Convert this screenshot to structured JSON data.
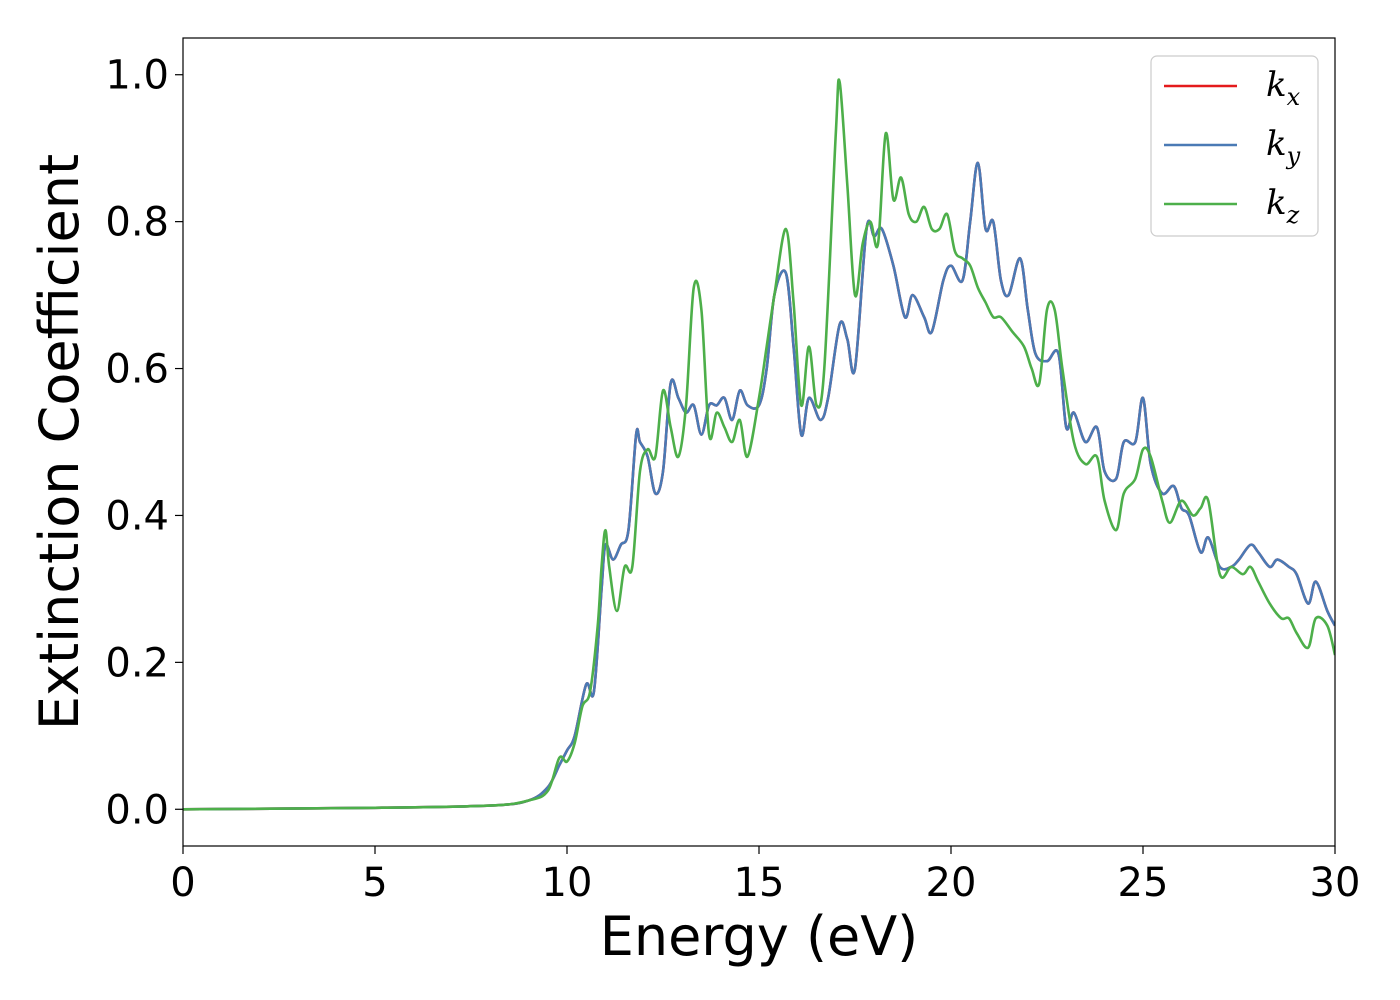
{
  "chart_data": {
    "type": "line",
    "title": "",
    "xlabel": "Energy (eV)",
    "ylabel": "Extinction Coefficient",
    "xlim": [
      0,
      30
    ],
    "ylim": [
      -0.05,
      1.05
    ],
    "xticks": [
      0,
      5,
      10,
      15,
      20,
      25,
      30
    ],
    "yticks": [
      0.0,
      0.2,
      0.4,
      0.6,
      0.8,
      1.0
    ],
    "xtick_labels": [
      "0",
      "5",
      "10",
      "15",
      "20",
      "25",
      "30"
    ],
    "ytick_labels": [
      "0.0",
      "0.2",
      "0.4",
      "0.6",
      "0.8",
      "1.0"
    ],
    "grid": false,
    "legend_position": "top-right",
    "series": [
      {
        "name": "k",
        "subscript": "x",
        "color": "#e41a1c",
        "x": [
          0,
          5,
          8,
          9,
          9.5,
          9.8,
          10.0,
          10.2,
          10.5,
          10.7,
          10.9,
          11.0,
          11.2,
          11.4,
          11.6,
          11.8,
          11.9,
          12.1,
          12.3,
          12.5,
          12.7,
          12.9,
          13.1,
          13.3,
          13.5,
          13.7,
          13.9,
          14.1,
          14.3,
          14.5,
          14.7,
          15.0,
          15.2,
          15.4,
          15.7,
          15.9,
          16.1,
          16.3,
          16.6,
          16.8,
          17.1,
          17.3,
          17.5,
          17.8,
          18.0,
          18.2,
          18.5,
          18.8,
          19.0,
          19.3,
          19.5,
          19.8,
          20.0,
          20.3,
          20.5,
          20.7,
          20.9,
          21.1,
          21.3,
          21.5,
          21.8,
          22.0,
          22.2,
          22.5,
          22.8,
          23.0,
          23.2,
          23.5,
          23.8,
          24.0,
          24.3,
          24.5,
          24.8,
          25.0,
          25.2,
          25.5,
          25.8,
          26.0,
          26.2,
          26.5,
          26.7,
          27.0,
          27.3,
          27.5,
          27.8,
          28.0,
          28.3,
          28.5,
          28.8,
          29.0,
          29.3,
          29.5,
          29.8,
          30.0
        ],
        "y": [
          0.0,
          0.002,
          0.005,
          0.012,
          0.03,
          0.06,
          0.08,
          0.1,
          0.17,
          0.16,
          0.3,
          0.36,
          0.34,
          0.36,
          0.38,
          0.51,
          0.5,
          0.48,
          0.43,
          0.46,
          0.58,
          0.56,
          0.54,
          0.55,
          0.51,
          0.55,
          0.55,
          0.56,
          0.53,
          0.57,
          0.55,
          0.55,
          0.6,
          0.7,
          0.73,
          0.63,
          0.51,
          0.56,
          0.53,
          0.56,
          0.66,
          0.64,
          0.6,
          0.79,
          0.78,
          0.79,
          0.74,
          0.67,
          0.7,
          0.67,
          0.65,
          0.72,
          0.74,
          0.72,
          0.8,
          0.88,
          0.79,
          0.8,
          0.72,
          0.7,
          0.75,
          0.68,
          0.62,
          0.61,
          0.62,
          0.52,
          0.54,
          0.5,
          0.52,
          0.46,
          0.45,
          0.5,
          0.5,
          0.56,
          0.47,
          0.43,
          0.44,
          0.41,
          0.4,
          0.35,
          0.37,
          0.33,
          0.33,
          0.34,
          0.36,
          0.35,
          0.33,
          0.34,
          0.33,
          0.32,
          0.28,
          0.31,
          0.27,
          0.25
        ]
      },
      {
        "name": "k",
        "subscript": "y",
        "color": "#4a7ab5",
        "x": [
          0,
          5,
          8,
          9,
          9.5,
          9.8,
          10.0,
          10.2,
          10.5,
          10.7,
          10.9,
          11.0,
          11.2,
          11.4,
          11.6,
          11.8,
          11.9,
          12.1,
          12.3,
          12.5,
          12.7,
          12.9,
          13.1,
          13.3,
          13.5,
          13.7,
          13.9,
          14.1,
          14.3,
          14.5,
          14.7,
          15.0,
          15.2,
          15.4,
          15.7,
          15.9,
          16.1,
          16.3,
          16.6,
          16.8,
          17.1,
          17.3,
          17.5,
          17.8,
          18.0,
          18.2,
          18.5,
          18.8,
          19.0,
          19.3,
          19.5,
          19.8,
          20.0,
          20.3,
          20.5,
          20.7,
          20.9,
          21.1,
          21.3,
          21.5,
          21.8,
          22.0,
          22.2,
          22.5,
          22.8,
          23.0,
          23.2,
          23.5,
          23.8,
          24.0,
          24.3,
          24.5,
          24.8,
          25.0,
          25.2,
          25.5,
          25.8,
          26.0,
          26.2,
          26.5,
          26.7,
          27.0,
          27.3,
          27.5,
          27.8,
          28.0,
          28.3,
          28.5,
          28.8,
          29.0,
          29.3,
          29.5,
          29.8,
          30.0
        ],
        "y": [
          0.0,
          0.002,
          0.005,
          0.012,
          0.03,
          0.06,
          0.08,
          0.1,
          0.17,
          0.16,
          0.3,
          0.36,
          0.34,
          0.36,
          0.38,
          0.51,
          0.5,
          0.48,
          0.43,
          0.46,
          0.58,
          0.56,
          0.54,
          0.55,
          0.51,
          0.55,
          0.55,
          0.56,
          0.53,
          0.57,
          0.55,
          0.55,
          0.6,
          0.7,
          0.73,
          0.63,
          0.51,
          0.56,
          0.53,
          0.56,
          0.66,
          0.64,
          0.6,
          0.79,
          0.78,
          0.79,
          0.74,
          0.67,
          0.7,
          0.67,
          0.65,
          0.72,
          0.74,
          0.72,
          0.8,
          0.88,
          0.79,
          0.8,
          0.72,
          0.7,
          0.75,
          0.68,
          0.62,
          0.61,
          0.62,
          0.52,
          0.54,
          0.5,
          0.52,
          0.46,
          0.45,
          0.5,
          0.5,
          0.56,
          0.47,
          0.43,
          0.44,
          0.41,
          0.4,
          0.35,
          0.37,
          0.33,
          0.33,
          0.34,
          0.36,
          0.35,
          0.33,
          0.34,
          0.33,
          0.32,
          0.28,
          0.31,
          0.27,
          0.25
        ]
      },
      {
        "name": "k",
        "subscript": "z",
        "color": "#4daf4a",
        "x": [
          0,
          5,
          8,
          9,
          9.5,
          9.8,
          10.0,
          10.2,
          10.4,
          10.6,
          10.8,
          10.9,
          11.0,
          11.1,
          11.3,
          11.5,
          11.7,
          11.9,
          12.1,
          12.3,
          12.5,
          12.7,
          12.9,
          13.1,
          13.3,
          13.5,
          13.7,
          13.9,
          14.1,
          14.3,
          14.5,
          14.7,
          15.0,
          15.2,
          15.4,
          15.7,
          15.9,
          16.1,
          16.3,
          16.5,
          16.7,
          17.0,
          17.1,
          17.3,
          17.5,
          17.7,
          17.9,
          18.1,
          18.3,
          18.5,
          18.7,
          18.9,
          19.1,
          19.3,
          19.5,
          19.7,
          19.9,
          20.1,
          20.3,
          20.5,
          20.7,
          20.9,
          21.1,
          21.3,
          21.6,
          21.9,
          22.1,
          22.3,
          22.5,
          22.7,
          22.9,
          23.2,
          23.5,
          23.8,
          24.0,
          24.3,
          24.5,
          24.8,
          25.0,
          25.2,
          25.5,
          25.7,
          26.0,
          26.3,
          26.5,
          26.7,
          27.0,
          27.3,
          27.6,
          27.8,
          28.0,
          28.3,
          28.6,
          28.8,
          29.0,
          29.3,
          29.5,
          29.8,
          30.0
        ],
        "y": [
          0.0,
          0.002,
          0.005,
          0.012,
          0.025,
          0.07,
          0.065,
          0.09,
          0.14,
          0.16,
          0.25,
          0.33,
          0.38,
          0.33,
          0.27,
          0.33,
          0.33,
          0.46,
          0.49,
          0.48,
          0.57,
          0.52,
          0.48,
          0.55,
          0.71,
          0.68,
          0.51,
          0.54,
          0.52,
          0.5,
          0.53,
          0.48,
          0.56,
          0.63,
          0.7,
          0.79,
          0.69,
          0.55,
          0.63,
          0.55,
          0.6,
          0.92,
          0.99,
          0.85,
          0.7,
          0.77,
          0.8,
          0.77,
          0.92,
          0.83,
          0.86,
          0.81,
          0.8,
          0.82,
          0.79,
          0.79,
          0.81,
          0.76,
          0.75,
          0.74,
          0.71,
          0.69,
          0.67,
          0.67,
          0.65,
          0.63,
          0.6,
          0.58,
          0.68,
          0.68,
          0.6,
          0.5,
          0.47,
          0.48,
          0.42,
          0.38,
          0.43,
          0.45,
          0.49,
          0.48,
          0.42,
          0.39,
          0.42,
          0.4,
          0.41,
          0.42,
          0.32,
          0.33,
          0.32,
          0.33,
          0.31,
          0.28,
          0.26,
          0.26,
          0.24,
          0.22,
          0.26,
          0.25,
          0.21
        ]
      }
    ]
  }
}
